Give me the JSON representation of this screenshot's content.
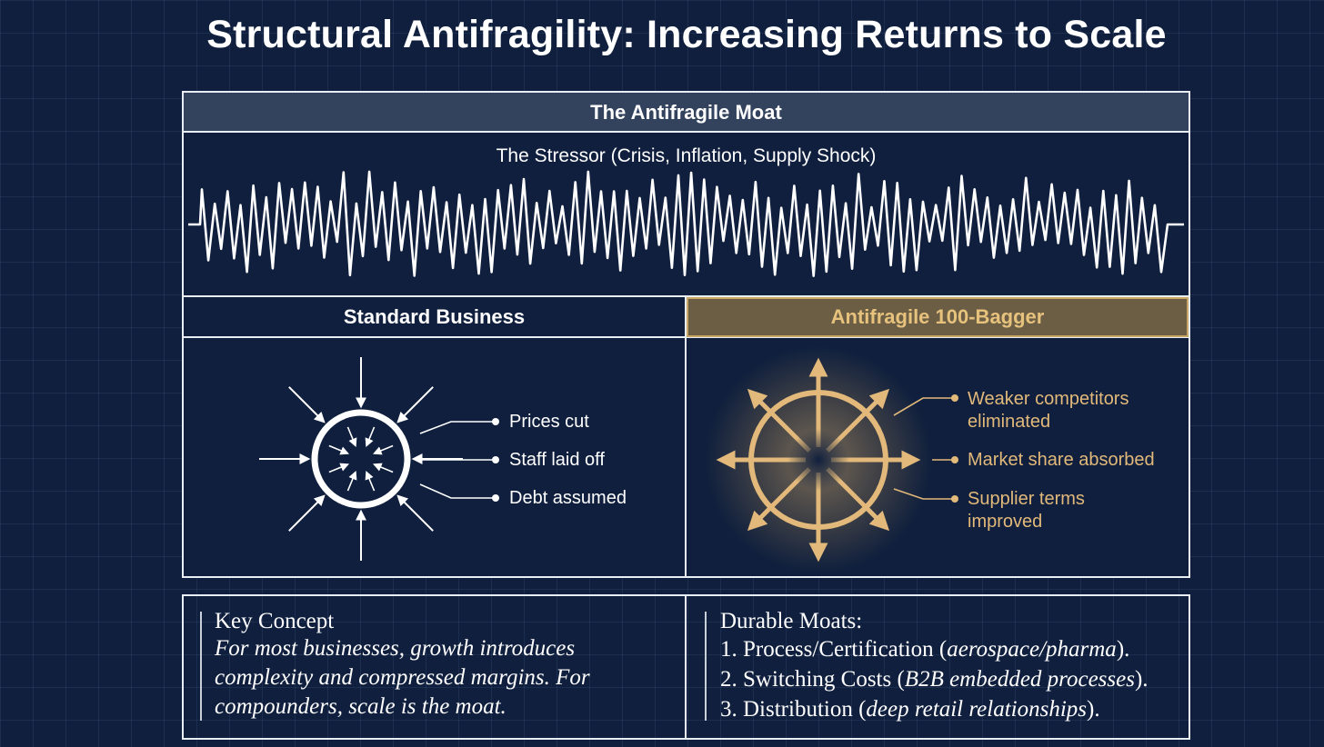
{
  "title": "Structural Antifragility: Increasing Returns to Scale",
  "moat": {
    "header": "The Antifragile Moat",
    "stressor_label": "The Stressor (Crisis, Inflation, Supply Shock)"
  },
  "standard": {
    "header": "Standard Business",
    "labels": [
      "Prices cut",
      "Staff laid off",
      "Debt assumed"
    ]
  },
  "antifragile": {
    "header": "Antifragile 100-Bagger",
    "labels": [
      [
        "Weaker competitors",
        "eliminated"
      ],
      [
        "Market share absorbed"
      ],
      [
        "Supplier terms",
        "improved"
      ]
    ]
  },
  "key_concept": {
    "title": "Key Concept",
    "body": [
      "For most businesses, growth introduces",
      "complexity and compressed margins. For",
      "compounders, scale is the moat."
    ]
  },
  "durable_moats": {
    "title": "Durable Moats:",
    "items": [
      {
        "prefix": "1. Process/Certification (",
        "italic": "aerospace/pharma",
        "suffix": ")."
      },
      {
        "prefix": "2. Switching Costs (",
        "italic": "B2B embedded processes",
        "suffix": ")."
      },
      {
        "prefix": "3. Distribution (",
        "italic": "deep retail relationships",
        "suffix": ")."
      }
    ]
  },
  "colors": {
    "background": "#0f1f3d",
    "line": "#e9edf4",
    "header_fill": "#33435e",
    "gold": "#e2b97a",
    "gold_header_fill": "#6b5e45"
  },
  "icons": {
    "standard": "compression-circle-icon",
    "antifragile": "expanding-wheel-icon",
    "stressor": "volatility-wave-icon"
  }
}
